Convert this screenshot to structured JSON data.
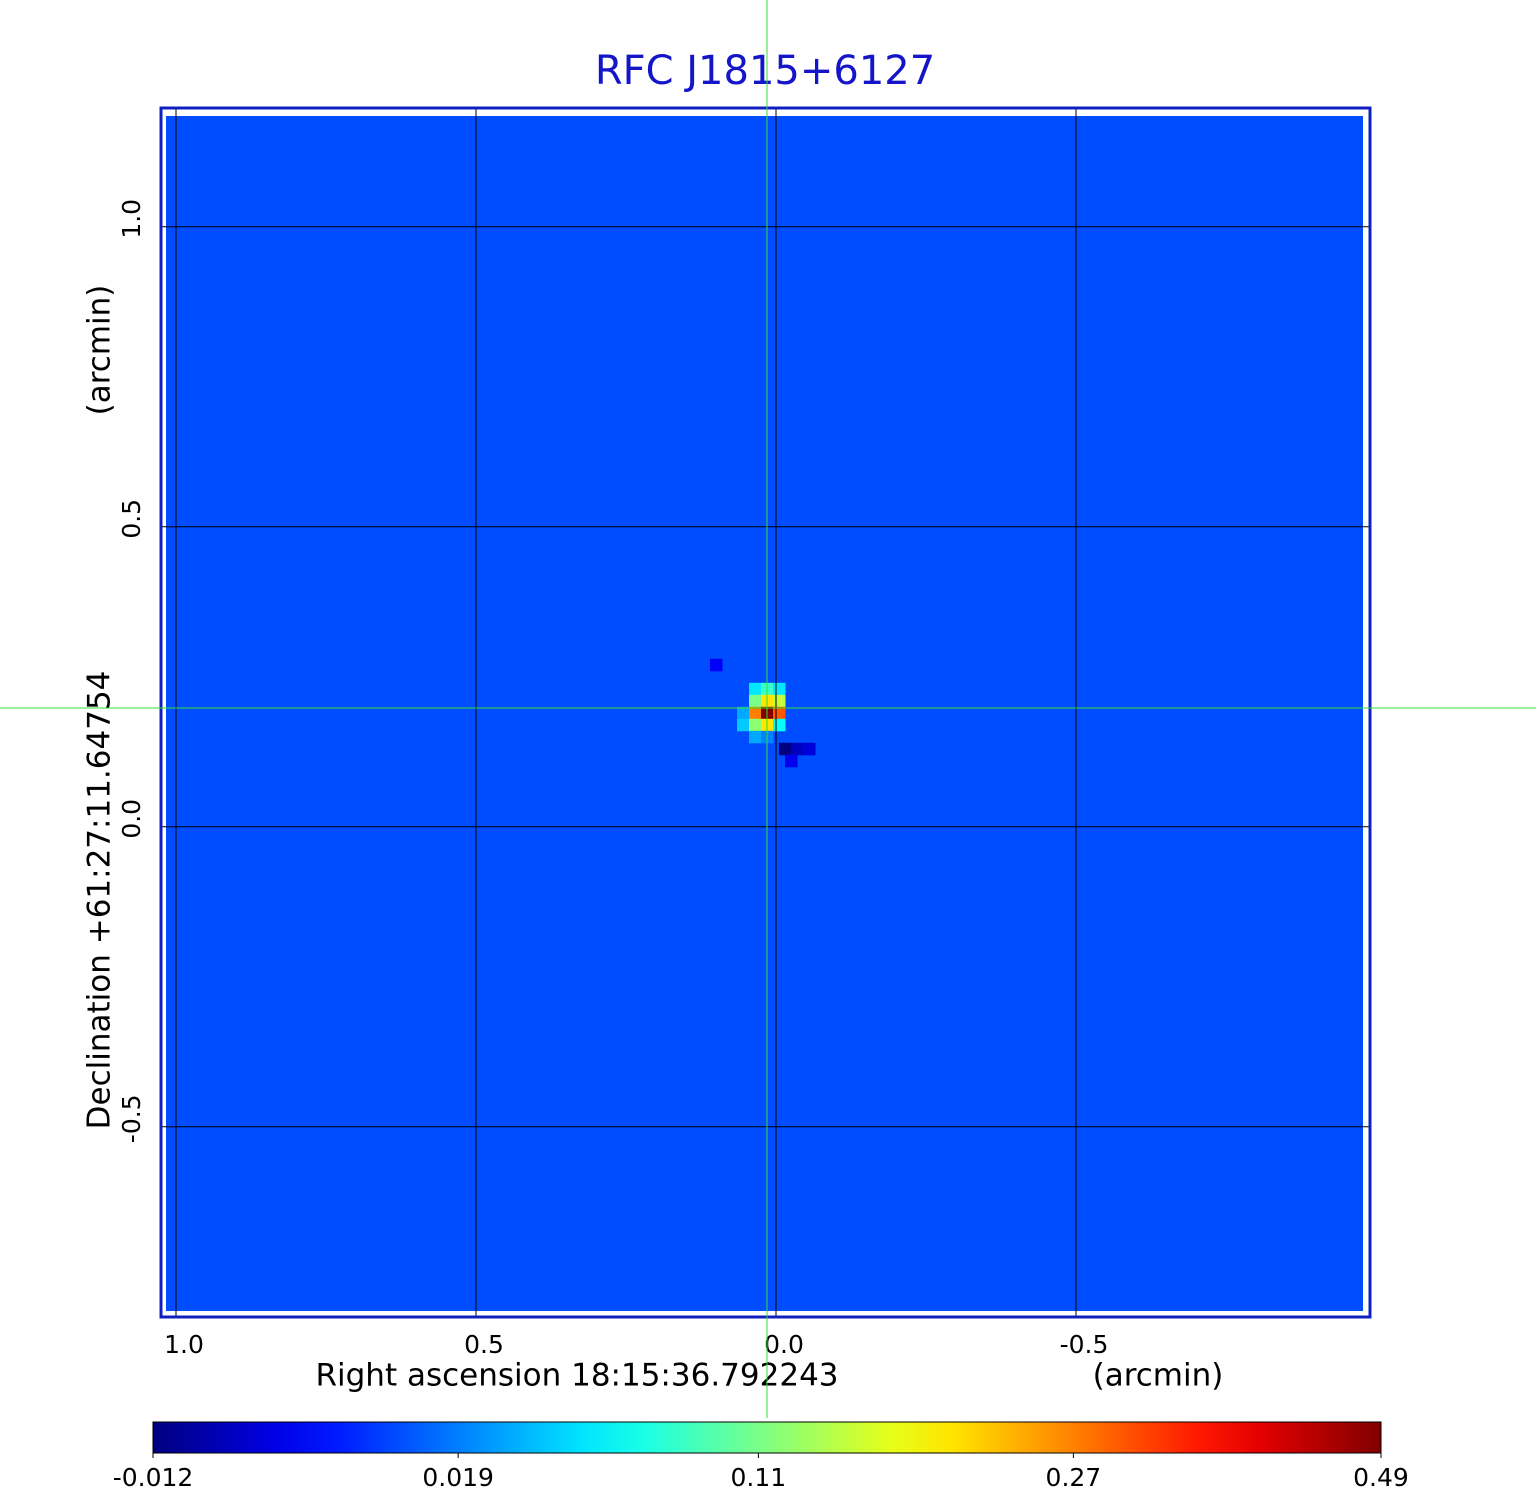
{
  "chart_data": {
    "type": "image",
    "title": "RFC J1815+6127",
    "xlabel": "Right ascension  18:15:36.792243",
    "xunit": "(arcmin)",
    "ylabel": "Declination  +61:27:11.64754",
    "yunit": "(arcmin)",
    "xlim": [
      1.025,
      -0.99
    ],
    "ylim": [
      -0.817,
      1.198
    ],
    "xticks": [
      {
        "value": 1,
        "label": "1.0"
      },
      0.5,
      {
        "value": 0,
        "label": "0.0"
      },
      -0.5
    ],
    "yticks": [
      -0.5,
      {
        "value": 0,
        "label": "0.0"
      },
      0.5,
      {
        "value": 1,
        "label": "1.0"
      }
    ],
    "grid": true,
    "background": 0.008,
    "pixels": {
      "x": [
        0.035,
        0.015,
        -0.005,
        0.035,
        0.015,
        -0.005,
        0.055,
        0.035,
        0.015,
        -0.005,
        0.055,
        0.035,
        0.015,
        -0.005,
        0.035,
        0.015,
        -0.015,
        -0.035,
        -0.055,
        -0.025,
        0.1
      ],
      "y": [
        0.23,
        0.23,
        0.23,
        0.21,
        0.21,
        0.21,
        0.19,
        0.19,
        0.19,
        0.19,
        0.17,
        0.17,
        0.17,
        0.17,
        0.15,
        0.15,
        0.13,
        0.13,
        0.13,
        0.11,
        0.27
      ],
      "values": [
        0.05,
        0.08,
        0.05,
        0.11,
        0.2,
        0.15,
        0.03,
        0.27,
        0.49,
        0.3,
        0.04,
        0.12,
        0.2,
        0.06,
        0.03,
        0.02,
        -0.012,
        -0.01,
        -0.008,
        -0.006,
        -0.005
      ]
    },
    "crosshair": {
      "x": 0.015,
      "y": 0.198
    },
    "colorbar": {
      "clim": [
        -0.012,
        0.49
      ],
      "scale": "sqrt",
      "colormap": "jet",
      "ticks": [
        -0.012,
        0.019,
        0.11,
        0.27,
        0.49
      ]
    }
  }
}
